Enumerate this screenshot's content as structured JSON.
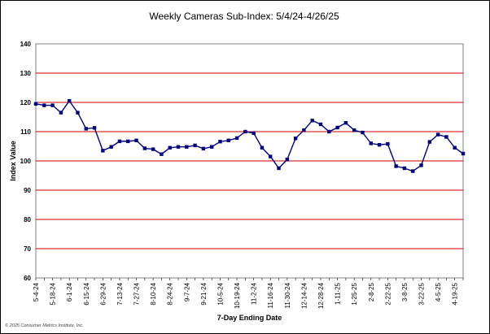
{
  "chart_data": {
    "type": "line",
    "title": "Weekly Cameras Sub-Index: 5/4/24-4/26/25",
    "xlabel": "7-Day Ending Date",
    "ylabel": "Index Value",
    "ylim": [
      60,
      140
    ],
    "yticks": [
      60,
      70,
      80,
      90,
      100,
      110,
      120,
      130,
      140
    ],
    "grid": true,
    "legend": "none",
    "colors": {
      "line": "#000080",
      "grid": "#cc0000",
      "plot_border": "#808080"
    },
    "x": [
      "5-4-24",
      "5-11-24",
      "5-18-24",
      "5-25-24",
      "6-1-24",
      "6-8-24",
      "6-15-24",
      "6-22-24",
      "6-29-24",
      "7-6-24",
      "7-13-24",
      "7-20-24",
      "7-27-24",
      "8-3-24",
      "8-10-24",
      "8-17-24",
      "8-24-24",
      "8-31-24",
      "9-7-24",
      "9-14-24",
      "9-21-24",
      "9-28-24",
      "10-5-24",
      "10-12-24",
      "10-19-24",
      "10-26-24",
      "11-2-24",
      "11-9-24",
      "11-16-24",
      "11-23-24",
      "11-30-24",
      "12-7-24",
      "12-14-24",
      "12-21-24",
      "12-28-24",
      "1-4-25",
      "1-11-25",
      "1-18-25",
      "1-25-25",
      "2-1-25",
      "2-8-25",
      "2-15-25",
      "2-22-25",
      "3-1-25",
      "3-8-25",
      "3-15-25",
      "3-22-25",
      "3-29-25",
      "4-5-25",
      "4-12-25",
      "4-19-25",
      "4-26-25"
    ],
    "xtick_labels": [
      "5-4-24",
      "5-18-24",
      "6-1-24",
      "6-15-24",
      "6-29-24",
      "7-13-24",
      "7-27-24",
      "8-10-24",
      "8-24-24",
      "9-7-24",
      "9-21-24",
      "10-5-24",
      "10-19-24",
      "11-2-24",
      "11-16-24",
      "11-30-24",
      "12-14-24",
      "12-28-24",
      "1-11-25",
      "1-25-25",
      "2-8-25",
      "2-22-25",
      "3-8-25",
      "3-22-25",
      "4-5-25",
      "4-19-25"
    ],
    "series": [
      {
        "values": [
          119.5,
          119,
          119,
          116.5,
          120.5,
          116.5,
          111,
          111.3,
          103.5,
          104.8,
          106.7,
          106.7,
          107,
          104.3,
          104,
          102.3,
          104.5,
          104.8,
          104.8,
          105.3,
          104.2,
          104.8,
          106.6,
          107,
          107.8,
          110,
          109.5,
          104.5,
          101.5,
          97.5,
          100.5,
          107.7,
          110.5,
          113.8,
          112.5,
          110,
          111.4,
          113,
          110.5,
          109.7,
          106,
          105.5,
          105.8,
          98.2,
          97.5,
          96.5,
          98.5,
          106.5,
          109,
          108.2,
          104.5,
          102.5
        ]
      }
    ]
  },
  "footer": {
    "credit": "© 2025 Consumer Metrics Institute, Inc."
  }
}
